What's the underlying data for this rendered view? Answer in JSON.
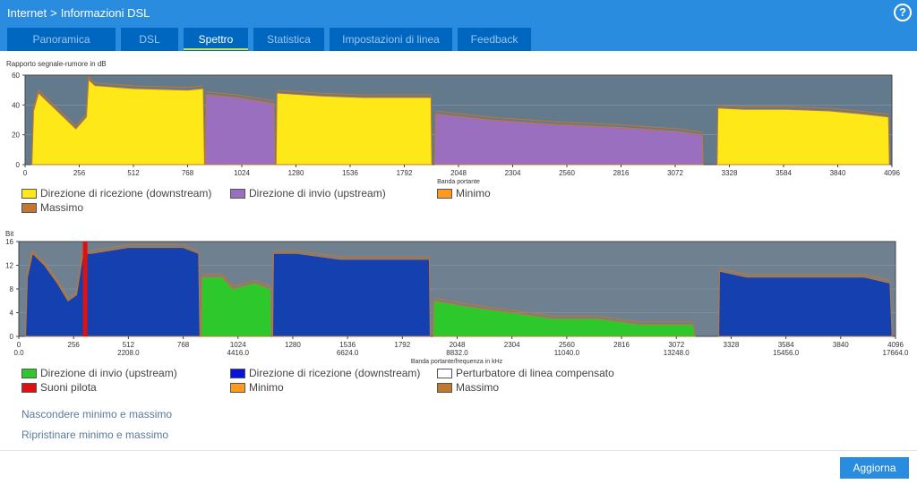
{
  "header": {
    "breadcrumb": [
      "Internet",
      "Informazioni DSL"
    ],
    "separator": ">",
    "help_icon": "question-circle-icon",
    "help_label": "?"
  },
  "tabs": [
    {
      "label": "Panoramica",
      "active": false
    },
    {
      "label": "DSL",
      "active": false
    },
    {
      "label": "Spettro",
      "active": true
    },
    {
      "label": "Statistica",
      "active": false
    },
    {
      "label": "Impostazioni di linea",
      "active": false
    },
    {
      "label": "Feedback",
      "active": false
    }
  ],
  "chart_data": [
    {
      "type": "area",
      "title": "Rapporto segnale-rumore in dB",
      "xlabel": "Banda portante",
      "ylabel": "Rapporto segnale-rumore in dB",
      "xlim": [
        0,
        4096
      ],
      "ylim": [
        0,
        60
      ],
      "xticks": [
        "0",
        "256",
        "512",
        "768",
        "1024",
        "1280",
        "1536",
        "1792",
        "2048",
        "2304",
        "2560",
        "2816",
        "3072",
        "3328",
        "3584",
        "3840",
        "4096"
      ],
      "yticks": [
        "0",
        "20",
        "40",
        "60"
      ],
      "grid": true,
      "legend": [
        {
          "label": "Direzione di ricezione (downstream)",
          "color": "#ffe817"
        },
        {
          "label": "Direzione di invio (upstream)",
          "color": "#9b6fc0"
        },
        {
          "label": "Minimo",
          "color": "#ff9a1e"
        },
        {
          "label": "Massimo",
          "color": "#c4772f"
        }
      ],
      "series": [
        {
          "name": "Direzione di ricezione (downstream)",
          "color": "#ffe817",
          "segments": [
            {
              "x": [
                32,
                40,
                64,
                240,
                290,
                300,
                330,
                512,
                768,
                842,
                848
              ],
              "y": [
                0,
                36,
                48,
                24,
                32,
                57,
                53,
                51,
                50,
                51,
                0
              ]
            },
            {
              "x": [
                1186,
                1190,
                1400,
                1600,
                1900,
                1918,
                1922
              ],
              "y": [
                0,
                48,
                46,
                45,
                45,
                45,
                0
              ]
            },
            {
              "x": [
                3270,
                3274,
                3400,
                3600,
                3800,
                3950,
                4080,
                4084
              ],
              "y": [
                0,
                38,
                37,
                37,
                36,
                34,
                32,
                0
              ]
            }
          ]
        },
        {
          "name": "Direzione di invio (upstream)",
          "color": "#9b6fc0",
          "segments": [
            {
              "x": [
                852,
                856,
                1000,
                1176,
                1180
              ],
              "y": [
                0,
                47,
                45,
                41,
                0
              ]
            },
            {
              "x": [
                1936,
                1940,
                2200,
                2500,
                2800,
                3100,
                3200,
                3204
              ],
              "y": [
                0,
                34,
                30,
                27,
                25,
                22,
                20,
                0
              ]
            }
          ]
        }
      ]
    },
    {
      "type": "area",
      "title": "Bit",
      "xlabel": "Banda portante/frequenza in kHz",
      "ylabel": "Bit",
      "xlim": [
        0,
        4096
      ],
      "ylim": [
        0,
        16
      ],
      "xticks": [
        "0",
        "256",
        "512",
        "768",
        "1024",
        "1280",
        "1536",
        "1792",
        "2048",
        "2304",
        "2560",
        "2816",
        "3072",
        "3328",
        "3584",
        "3840",
        "4096"
      ],
      "xticks_khz": [
        "0.0",
        "2208.0",
        "4416.0",
        "6624.0",
        "8832.0",
        "11040.0",
        "13248.0",
        "15456.0",
        "17664.0"
      ],
      "yticks": [
        "0",
        "4",
        "8",
        "12",
        "16"
      ],
      "grid": true,
      "legend": [
        {
          "label": "Direzione di invio (upstream)",
          "color": "#2cc82c"
        },
        {
          "label": "Direzione di ricezione (downstream)",
          "color": "#0a12d8"
        },
        {
          "label": "Perturbatore di linea compensato",
          "color": "#ffffff"
        },
        {
          "label": "Suoni pilota",
          "color": "#e01010"
        },
        {
          "label": "Minimo",
          "color": "#ff9a1e"
        },
        {
          "label": "Massimo",
          "color": "#c4772f"
        }
      ],
      "series": [
        {
          "name": "Direzione di ricezione (downstream)",
          "color": "#1440b0",
          "segments": [
            {
              "x": [
                32,
                40,
                64,
                120,
                180,
                230,
                270,
                300,
                340,
                512,
                768,
                840,
                846
              ],
              "y": [
                0,
                10,
                14,
                12,
                9,
                6,
                7,
                14,
                14,
                15,
                15,
                14,
                0
              ]
            },
            {
              "x": [
                1186,
                1190,
                1300,
                1500,
                1700,
                1918,
                1922
              ],
              "y": [
                0,
                14,
                14,
                13,
                13,
                13,
                0
              ]
            },
            {
              "x": [
                3270,
                3274,
                3400,
                3600,
                3800,
                3950,
                4070,
                4080
              ],
              "y": [
                0,
                11,
                10,
                10,
                10,
                10,
                9,
                0
              ]
            }
          ]
        },
        {
          "name": "Direzione di invio (upstream)",
          "color": "#2cc82c",
          "segments": [
            {
              "x": [
                852,
                856,
                950,
                1000,
                1100,
                1176,
                1180
              ],
              "y": [
                0,
                10,
                10,
                8,
                9,
                8,
                0
              ]
            },
            {
              "x": [
                1936,
                1940,
                2100,
                2300,
                2500,
                2700,
                2900,
                3150,
                3160
              ],
              "y": [
                0,
                6,
                5,
                4,
                3,
                3,
                2,
                2,
                0
              ]
            }
          ]
        }
      ],
      "pilot_tones": [
        310
      ]
    }
  ],
  "charts_text": {
    "snr_title": "Rapporto segnale-rumore in dB",
    "snr_xlabel": "Banda portante",
    "bit_title": "Bit",
    "bit_xlabel": "Banda portante/frequenza in kHz"
  },
  "legend1": [
    {
      "label": "Direzione di ricezione (downstream)",
      "color": "#ffe817"
    },
    {
      "label": "Direzione di invio (upstream)",
      "color": "#9b6fc0"
    },
    {
      "label": "Minimo",
      "color": "#ff9a1e"
    },
    {
      "label": "Massimo",
      "color": "#c4772f"
    }
  ],
  "legend2": [
    {
      "label": "Direzione di invio (upstream)",
      "color": "#2cc82c"
    },
    {
      "label": "Direzione di ricezione (downstream)",
      "color": "#0a12d8"
    },
    {
      "label": "Perturbatore di linea compensato",
      "color": "#ffffff"
    },
    {
      "label": "Suoni pilota",
      "color": "#e01010"
    },
    {
      "label": "Minimo",
      "color": "#ff9a1e"
    },
    {
      "label": "Massimo",
      "color": "#c4772f"
    }
  ],
  "links": {
    "hide_minmax": "Nascondere minimo e massimo",
    "reset_minmax": "Ripristinare minimo e massimo"
  },
  "footer": {
    "refresh_label": "Aggiorna"
  }
}
